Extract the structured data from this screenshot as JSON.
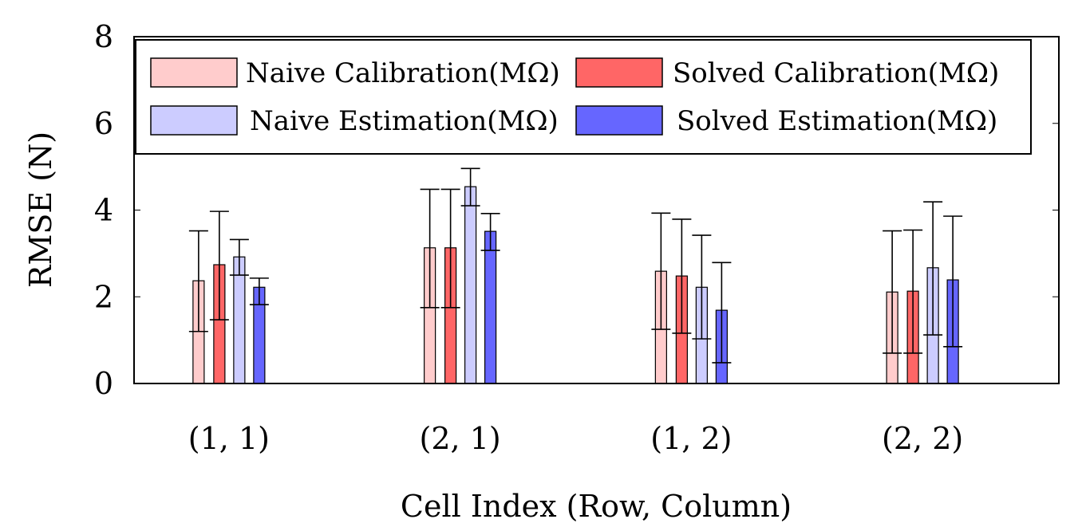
{
  "chart_data": {
    "type": "bar",
    "xlabel": "Cell Index (Row, Column)",
    "ylabel": "RMSE (N)",
    "ylim": [
      0,
      8
    ],
    "yticks": [
      0,
      2,
      4,
      6,
      8
    ],
    "grid": false,
    "legend_placement": "top",
    "categories": [
      "(1, 1)",
      "(2, 1)",
      "(1, 2)",
      "(2, 2)"
    ],
    "series": [
      {
        "name": "Naive Calibration(MΩ)",
        "color": "#ffcccc",
        "values": [
          2.37,
          3.13,
          2.59,
          2.11
        ],
        "error_low": [
          1.2,
          1.75,
          1.25,
          0.7
        ],
        "error_high": [
          3.52,
          4.48,
          3.93,
          3.52
        ]
      },
      {
        "name": "Solved Calibration(MΩ)",
        "color": "#ff6666",
        "values": [
          2.74,
          3.13,
          2.48,
          2.13
        ],
        "error_low": [
          1.47,
          1.75,
          1.16,
          0.7
        ],
        "error_high": [
          3.97,
          4.48,
          3.79,
          3.54
        ]
      },
      {
        "name": "Naive Estimation(MΩ)",
        "color": "#ccccff",
        "values": [
          2.92,
          4.54,
          2.22,
          2.67
        ],
        "error_low": [
          2.5,
          4.1,
          1.03,
          1.12
        ],
        "error_high": [
          3.32,
          4.96,
          3.42,
          4.19
        ]
      },
      {
        "name": "Solved Estimation(MΩ)",
        "color": "#6666ff",
        "values": [
          2.22,
          3.51,
          1.69,
          2.39
        ],
        "error_low": [
          1.82,
          3.07,
          0.48,
          0.85
        ],
        "error_high": [
          2.43,
          3.92,
          2.79,
          3.86
        ]
      }
    ]
  }
}
